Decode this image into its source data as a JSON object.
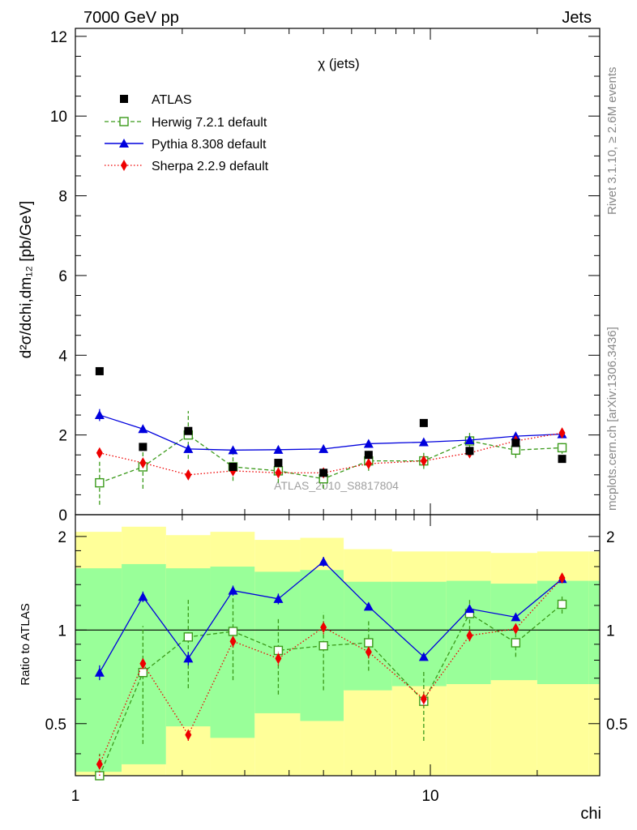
{
  "header": {
    "left": "7000 GeV pp",
    "right": "Jets"
  },
  "side_labels": {
    "rivet": "Rivet 3.1.10, ≥ 2.6M events",
    "mcplots": "mcplots.cern.ch [arXiv:1306.3436]"
  },
  "main_title": "χ (jets)",
  "watermark": "ATLAS_2010_S8817804",
  "ylabel_main": "d²σ/dchi,dm₁₂ [pb/GeV]",
  "ylabel_ratio": "Ratio to ATLAS",
  "xlabel": "chi",
  "colors": {
    "atlas": "#000000",
    "herwig": "#3a9a1a",
    "pythia": "#0000dd",
    "sherpa": "#ee0000",
    "band_inner": "#99ff99",
    "band_outer": "#ffff99"
  },
  "chart_data": [
    {
      "type": "scatter",
      "xscale": "log",
      "xlim": [
        1,
        30
      ],
      "ylim": [
        0,
        12.2
      ],
      "yticks": [
        0,
        2,
        4,
        6,
        8,
        10,
        12
      ],
      "legend_position": "top-left",
      "x": [
        1.17,
        1.55,
        2.08,
        2.78,
        3.73,
        5.0,
        6.7,
        9.58,
        12.9,
        17.4,
        23.5
      ],
      "series": [
        {
          "name": "ATLAS",
          "values": [
            3.6,
            1.7,
            2.1,
            1.2,
            1.3,
            1.05,
            1.5,
            2.3,
            1.6,
            1.8,
            1.4
          ]
        },
        {
          "name": "Herwig 7.2.1 default",
          "values": [
            0.8,
            1.2,
            2.0,
            1.2,
            1.1,
            0.9,
            1.35,
            1.35,
            1.85,
            1.62,
            1.68
          ],
          "errors": [
            0.55,
            0.55,
            0.6,
            0.35,
            0.3,
            0.25,
            0.25,
            0.2,
            0.2,
            0.2,
            0.15
          ]
        },
        {
          "name": "Pythia 8.308 default",
          "values": [
            2.5,
            2.15,
            1.65,
            1.62,
            1.63,
            1.65,
            1.78,
            1.82,
            1.87,
            1.97,
            2.02
          ],
          "errors": [
            0.15,
            0.1,
            0.08,
            0.06,
            0.06,
            0.06,
            0.06,
            0.05,
            0.05,
            0.05,
            0.05
          ]
        },
        {
          "name": "Sherpa 2.2.9 default",
          "values": [
            1.55,
            1.3,
            1.0,
            1.1,
            1.05,
            1.05,
            1.28,
            1.35,
            1.55,
            1.85,
            2.05
          ],
          "errors": [
            0.12,
            0.1,
            0.08,
            0.08,
            0.07,
            0.07,
            0.07,
            0.06,
            0.06,
            0.06,
            0.06
          ]
        }
      ]
    },
    {
      "type": "line",
      "xscale": "log",
      "yscale": "log",
      "xlim": [
        1,
        30
      ],
      "ylim": [
        0.34,
        2.35
      ],
      "yticks": [
        0.5,
        1,
        2
      ],
      "x": [
        1.17,
        1.55,
        2.08,
        2.78,
        3.73,
        5.0,
        6.7,
        9.58,
        12.9,
        17.4,
        23.5
      ],
      "bin_edges": [
        1.0,
        1.35,
        1.8,
        2.4,
        3.2,
        4.3,
        5.7,
        7.8,
        11.1,
        14.8,
        20.0,
        28.0
      ],
      "band_inner": {
        "lo": [
          0.35,
          0.37,
          0.49,
          0.45,
          0.54,
          0.51,
          0.64,
          0.66,
          0.67,
          0.69,
          0.67
        ],
        "hi": [
          1.58,
          1.63,
          1.58,
          1.6,
          1.54,
          1.56,
          1.43,
          1.43,
          1.44,
          1.41,
          1.44
        ]
      },
      "band_outer": {
        "lo": [
          0.34,
          0.34,
          0.34,
          0.34,
          0.34,
          0.34,
          0.34,
          0.34,
          0.34,
          0.34,
          0.34
        ],
        "hi": [
          2.07,
          2.15,
          2.02,
          2.07,
          1.95,
          1.98,
          1.82,
          1.79,
          1.79,
          1.77,
          1.79
        ]
      },
      "series": [
        {
          "name": "Herwig 7.2.1 default",
          "values": [
            0.22,
            0.73,
            0.95,
            0.99,
            0.86,
            0.89,
            0.91,
            0.59,
            1.13,
            0.91,
            1.21
          ],
          "errors": [
            0.18,
            0.3,
            0.3,
            0.3,
            0.24,
            0.25,
            0.17,
            0.15,
            0.13,
            0.09,
            0.08
          ]
        },
        {
          "name": "Pythia 8.308 default",
          "values": [
            0.73,
            1.28,
            0.81,
            1.34,
            1.26,
            1.66,
            1.19,
            0.82,
            1.17,
            1.1,
            1.46
          ],
          "errors": [
            0.04,
            0.05,
            0.04,
            0.05,
            0.05,
            0.06,
            0.03,
            0.02,
            0.03,
            0.02,
            0.03
          ]
        },
        {
          "name": "Sherpa 2.2.9 default",
          "values": [
            0.37,
            0.78,
            0.46,
            0.92,
            0.81,
            1.02,
            0.85,
            0.6,
            0.96,
            1.01,
            1.47
          ],
          "errors": [
            0.03,
            0.03,
            0.02,
            0.04,
            0.04,
            0.05,
            0.04,
            0.03,
            0.04,
            0.03,
            0.04
          ]
        }
      ]
    }
  ]
}
